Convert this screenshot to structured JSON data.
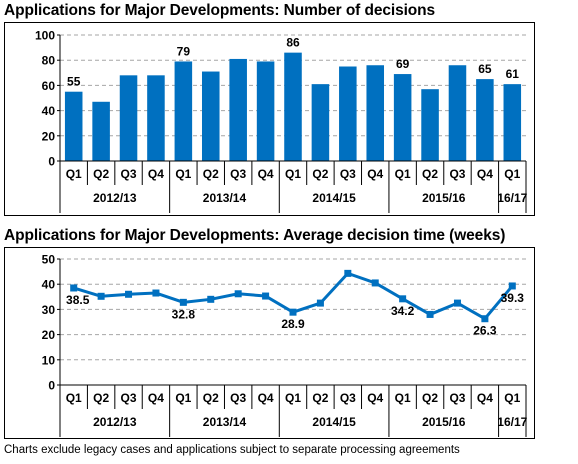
{
  "chart_data": [
    {
      "type": "bar",
      "title": "Applications for Major Developments: Number of decisions",
      "quarters": [
        "Q1",
        "Q2",
        "Q3",
        "Q4",
        "Q1",
        "Q2",
        "Q3",
        "Q4",
        "Q1",
        "Q2",
        "Q3",
        "Q4",
        "Q1",
        "Q2",
        "Q3",
        "Q4",
        "Q1"
      ],
      "years": [
        "2012/13",
        "2013/14",
        "2014/15",
        "2015/16",
        "16/17"
      ],
      "values": [
        55,
        47,
        68,
        68,
        79,
        71,
        81,
        79,
        86,
        61,
        75,
        76,
        69,
        57,
        76,
        65,
        61
      ],
      "data_labels": {
        "0": "55",
        "4": "79",
        "8": "86",
        "12": "69",
        "15": "65",
        "16": "61"
      },
      "ylim": [
        0,
        100
      ],
      "yticks": [
        0,
        20,
        40,
        60,
        80,
        100
      ],
      "ytick_labels": [
        "0",
        "20",
        "40",
        "60",
        "80",
        "100"
      ],
      "grid": true,
      "color": "#0070C0"
    },
    {
      "type": "line",
      "title": "Applications for Major Developments: Average decision time (weeks)",
      "quarters": [
        "Q1",
        "Q2",
        "Q3",
        "Q4",
        "Q1",
        "Q2",
        "Q3",
        "Q4",
        "Q1",
        "Q2",
        "Q3",
        "Q4",
        "Q1",
        "Q2",
        "Q3",
        "Q4",
        "Q1"
      ],
      "years": [
        "2012/13",
        "2013/14",
        "2014/15",
        "2015/16",
        "16/17"
      ],
      "values": [
        38.5,
        35.2,
        36.0,
        36.5,
        32.8,
        34.0,
        36.2,
        35.3,
        28.9,
        32.5,
        44.3,
        40.5,
        34.2,
        28.0,
        32.5,
        26.3,
        39.3
      ],
      "data_labels": {
        "0": "38.5",
        "4": "32.8",
        "8": "28.9",
        "12": "34.2",
        "15": "26.3",
        "16": "39.3"
      },
      "ylim": [
        0,
        50
      ],
      "yticks": [
        0,
        10,
        20,
        30,
        40,
        50
      ],
      "ytick_labels": [
        "0",
        "10",
        "20",
        "30",
        "40",
        "50"
      ],
      "grid": true,
      "color": "#0070C0"
    }
  ],
  "footnote": "Charts exclude legacy cases and applications subject to separate processing agreements"
}
